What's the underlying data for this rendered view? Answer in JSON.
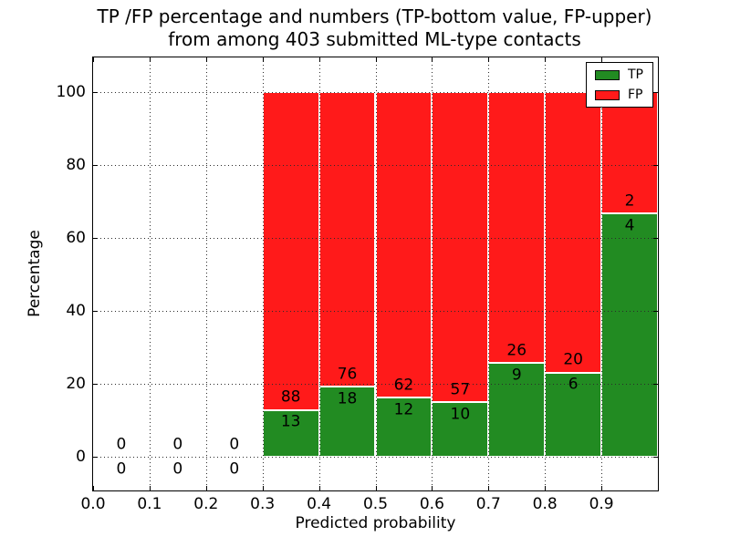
{
  "title": {
    "line1": "TP /FP percentage and numbers (TP-bottom value, FP-upper)",
    "line2": "from among 403 submitted ML-type contacts"
  },
  "axes": {
    "xlabel": "Predicted probability",
    "ylabel": "Percentage"
  },
  "legend": [
    {
      "label": "TP",
      "color": "#228b22"
    },
    {
      "label": "FP",
      "color": "#ff1a1a"
    }
  ],
  "colors": {
    "tp": "#228b22",
    "fp": "#ff1a1a",
    "grid": "#2b2b2b",
    "frame": "#000000",
    "background": "#ffffff"
  },
  "chart_data": {
    "type": "bar",
    "stacked": true,
    "title": "TP /FP percentage and numbers (TP-bottom value, FP-upper) from among 403 submitted ML-type contacts",
    "xlabel": "Predicted probability",
    "ylabel": "Percentage",
    "xlim": [
      0.0,
      1.0
    ],
    "ylim": [
      -9.5,
      109.5
    ],
    "grid": true,
    "grid_style": "dotted",
    "legend_position": "upper right",
    "total_contacts": 403,
    "bar_unit": "percent_of_bin_total",
    "annotation_note": "TP count below boundary, FP count above boundary",
    "x_ticks": [
      {
        "v": 0.0,
        "label": "0.0"
      },
      {
        "v": 0.1,
        "label": "0.1"
      },
      {
        "v": 0.2,
        "label": "0.2"
      },
      {
        "v": 0.3,
        "label": "0.3"
      },
      {
        "v": 0.4,
        "label": "0.4"
      },
      {
        "v": 0.5,
        "label": "0.5"
      },
      {
        "v": 0.6,
        "label": "0.6"
      },
      {
        "v": 0.7,
        "label": "0.7"
      },
      {
        "v": 0.8,
        "label": "0.8"
      },
      {
        "v": 0.9,
        "label": "0.9"
      }
    ],
    "y_ticks": [
      {
        "v": 0,
        "label": "0"
      },
      {
        "v": 20,
        "label": "20"
      },
      {
        "v": 40,
        "label": "40"
      },
      {
        "v": 60,
        "label": "60"
      },
      {
        "v": 80,
        "label": "80"
      },
      {
        "v": 100,
        "label": "100"
      }
    ],
    "bins": [
      {
        "range": [
          0.0,
          0.1
        ],
        "tp": 0,
        "fp": 0
      },
      {
        "range": [
          0.1,
          0.2
        ],
        "tp": 0,
        "fp": 0
      },
      {
        "range": [
          0.2,
          0.3
        ],
        "tp": 0,
        "fp": 0
      },
      {
        "range": [
          0.3,
          0.4
        ],
        "tp": 13,
        "fp": 88
      },
      {
        "range": [
          0.4,
          0.5
        ],
        "tp": 18,
        "fp": 76
      },
      {
        "range": [
          0.5,
          0.6
        ],
        "tp": 12,
        "fp": 62
      },
      {
        "range": [
          0.6,
          0.7
        ],
        "tp": 10,
        "fp": 57
      },
      {
        "range": [
          0.7,
          0.8
        ],
        "tp": 9,
        "fp": 26
      },
      {
        "range": [
          0.8,
          0.9
        ],
        "tp": 6,
        "fp": 20
      },
      {
        "range": [
          0.9,
          1.0
        ],
        "tp": 4,
        "fp": 2
      }
    ],
    "series": [
      {
        "name": "TP",
        "color": "#228b22",
        "counts": [
          0,
          0,
          0,
          13,
          18,
          12,
          10,
          9,
          6,
          4
        ]
      },
      {
        "name": "FP",
        "color": "#ff1a1a",
        "counts": [
          0,
          0,
          0,
          88,
          76,
          62,
          57,
          26,
          20,
          2
        ]
      }
    ]
  }
}
